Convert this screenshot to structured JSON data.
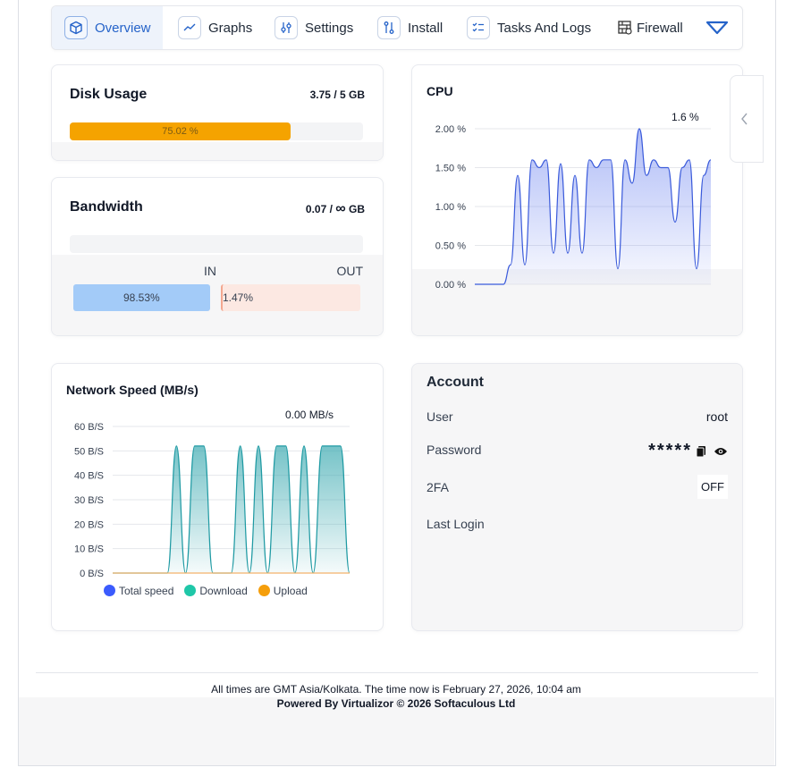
{
  "nav": {
    "tabs": [
      {
        "label": "Overview",
        "icon": "cube-icon"
      },
      {
        "label": "Graphs",
        "icon": "graph-icon"
      },
      {
        "label": "Settings",
        "icon": "sliders-icon"
      },
      {
        "label": "Install",
        "icon": "install-icon"
      },
      {
        "label": "Tasks And Logs",
        "icon": "tasks-icon"
      },
      {
        "label": "Firewall",
        "icon": "firewall-icon"
      }
    ],
    "more_icon": "chevron-down-icon"
  },
  "disk": {
    "title": "Disk Usage",
    "value": "3.75 / 5 GB",
    "percent": 75.02,
    "percent_label": "75.02 %"
  },
  "bandwidth": {
    "title": "Bandwidth",
    "value_prefix": "0.07 / ",
    "value_infinity": "∞",
    "value_suffix": " GB",
    "in_label": "IN",
    "out_label": "OUT",
    "in_percent": 98.53,
    "in_label_value": "98.53%",
    "out_percent": 1.47,
    "out_label_value": "1.47%"
  },
  "cpu": {
    "title": "CPU",
    "current": "1.6 %",
    "ticks": [
      "2.00 %",
      "1.50 %",
      "1.00 %",
      "0.50 %",
      "0.00 %"
    ]
  },
  "network": {
    "title": "Network Speed (MB/s)",
    "current": "0.00 MB/s",
    "ticks": [
      "60 B/S",
      "50 B/S",
      "40 B/S",
      "30 B/S",
      "20 B/S",
      "10 B/S",
      "0 B/S"
    ],
    "legend": [
      {
        "label": "Total speed",
        "color": "#3b5bfd"
      },
      {
        "label": "Download",
        "color": "#1fc7a8"
      },
      {
        "label": "Upload",
        "color": "#f59e0b"
      }
    ]
  },
  "account": {
    "title": "Account",
    "user_label": "User",
    "user_value": "root",
    "password_label": "Password",
    "password_value": "*****",
    "twofa_label": "2FA",
    "twofa_value": "OFF",
    "last_login_label": "Last Login"
  },
  "footer": {
    "note": "All times are GMT Asia/Kolkata. The time now is February 27, 2026, 10:04 am",
    "powered": "Powered By Virtualizor © 2026 Softaculous Ltd"
  },
  "chart_data": [
    {
      "type": "area",
      "title": "CPU",
      "ylim": [
        0,
        2
      ],
      "y_ticks": [
        "0.00 %",
        "0.50 %",
        "1.00 %",
        "1.50 %",
        "2.00 %"
      ],
      "series": [
        {
          "values": [
            0,
            0,
            0,
            0,
            0,
            0.25,
            1.4,
            0.25,
            1.6,
            1.5,
            1.6,
            0.4,
            1.55,
            0.4,
            1.4,
            0.4,
            1.6,
            1.5,
            1.6,
            1.6,
            0.2,
            1.6,
            1.3,
            2.0,
            1.4,
            1.6,
            1.5,
            1.5,
            0.8,
            1.5,
            1.6,
            0.2,
            1.4,
            1.6
          ]
        }
      ]
    },
    {
      "type": "area",
      "title": "Network Speed (MB/s)",
      "ylim": [
        0,
        60
      ],
      "y_ticks": [
        "0 B/S",
        "10 B/S",
        "20 B/S",
        "30 B/S",
        "40 B/S",
        "50 B/S",
        "60 B/S"
      ],
      "series": [
        {
          "name": "Total speed",
          "values": [
            0,
            0,
            0,
            0,
            0,
            0,
            0,
            52,
            0,
            52,
            52,
            0,
            0,
            0,
            52,
            0,
            52,
            0,
            52,
            52,
            0,
            52,
            0,
            52,
            52,
            52,
            0
          ]
        },
        {
          "name": "Download",
          "values": [
            0,
            0,
            0,
            0,
            0,
            0,
            0,
            52,
            0,
            52,
            52,
            0,
            0,
            0,
            52,
            0,
            52,
            0,
            52,
            52,
            0,
            52,
            0,
            52,
            52,
            52,
            0
          ]
        },
        {
          "name": "Upload",
          "values": [
            0,
            0,
            0,
            0,
            0,
            0,
            0,
            0,
            0,
            0,
            0,
            0,
            0,
            0,
            0,
            0,
            0,
            0,
            0,
            0,
            0,
            0,
            0,
            0,
            0,
            0,
            0
          ]
        }
      ]
    }
  ]
}
